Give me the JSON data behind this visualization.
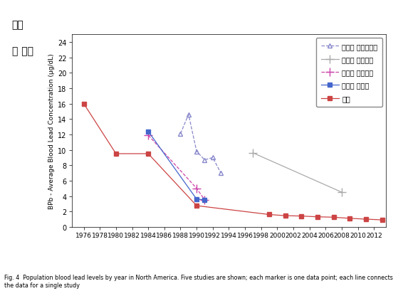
{
  "title_korean": "혈중\n납 농도",
  "ylabel": "BPb - Average Blood Lead Concentration (μg/dL)",
  "caption": "Fig. 4  Population blood lead levels by year in North America. Five studies are shown; each marker is one data point; each line connects the data for a single study",
  "ylim": [
    0,
    25
  ],
  "xlim": [
    1974.5,
    2013.5
  ],
  "xticks": [
    1976,
    1978,
    1980,
    1982,
    1984,
    1986,
    1988,
    1990,
    1992,
    1994,
    1996,
    1998,
    2000,
    2002,
    2004,
    2006,
    2008,
    2010,
    2012
  ],
  "yticks": [
    0,
    2,
    4,
    6,
    8,
    10,
    12,
    14,
    16,
    18,
    20,
    22,
    24
  ],
  "series": [
    {
      "label": "멕시코 멕시코시티",
      "color": "#8888cc",
      "linestyle": "--",
      "marker": "^",
      "markersize": 5,
      "markerfacecolor": "none",
      "x": [
        1988,
        1989,
        1990,
        1991,
        1992,
        1993
      ],
      "y": [
        12.1,
        14.6,
        9.8,
        8.7,
        9.0,
        7.0
      ]
    },
    {
      "label": "멕시코 론테레이",
      "color": "#aaaaaa",
      "linestyle": "-",
      "marker": "+",
      "markersize": 8,
      "markerfacecolor": "#aaaaaa",
      "x": [
        1997,
        2008
      ],
      "y": [
        9.6,
        4.5
      ]
    },
    {
      "label": "캐나다 온타리오",
      "color": "#cc44aa",
      "linestyle": "--",
      "marker": "+",
      "markersize": 8,
      "markerfacecolor": "#cc44aa",
      "x": [
        1984,
        1990,
        1991
      ],
      "y": [
        11.9,
        5.0,
        3.5
      ]
    },
    {
      "label": "캐나다 토론토",
      "color": "#4466cc",
      "linestyle": "-",
      "marker": "s",
      "markersize": 5,
      "markerfacecolor": "#4466cc",
      "x": [
        1984,
        1990,
        1991
      ],
      "y": [
        12.4,
        3.6,
        3.5
      ]
    },
    {
      "label": "미국",
      "color": "#cc4444",
      "linestyle": "-",
      "marker": "s",
      "markersize": 4,
      "markerfacecolor": "#cc4444",
      "x": [
        1976,
        1980,
        1984,
        1990,
        1999,
        2001,
        2003,
        2005,
        2007,
        2009,
        2011,
        2013
      ],
      "y": [
        16.0,
        9.5,
        9.5,
        2.75,
        1.6,
        1.45,
        1.4,
        1.3,
        1.25,
        1.1,
        1.0,
        0.9
      ]
    }
  ],
  "legend_loc": "upper right",
  "background_color": "#ffffff"
}
